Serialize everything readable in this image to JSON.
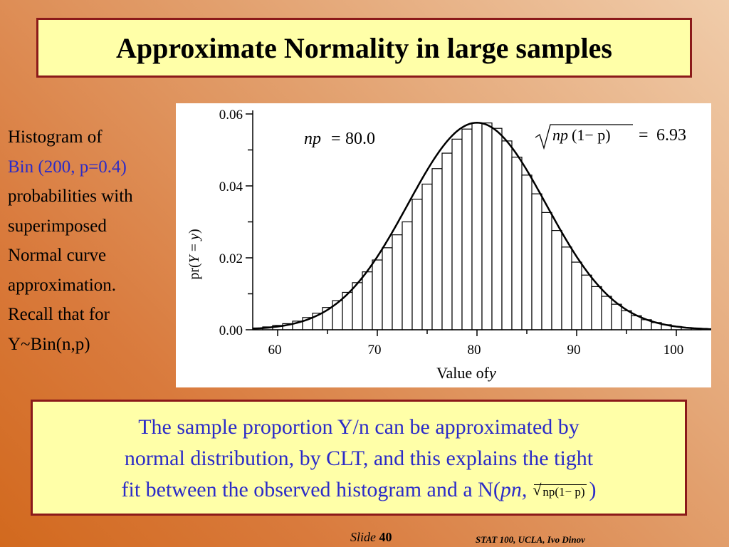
{
  "title": "Approximate Normality in large samples",
  "side_text": {
    "line1": "Histogram of",
    "line2": "Bin (200, p=0.4)",
    "line3": "probabilities with",
    "line4": "superimposed",
    "line5": "Normal curve",
    "line6": "approximation.",
    "line7": "Recall that for",
    "line8": "Y~Bin(n,p)"
  },
  "annotations": {
    "np_label": "np",
    "np_value": "80.0",
    "sd_radicand_np": "np",
    "sd_radicand_rest": "(1− p)",
    "sd_value": "6.93"
  },
  "bottom_text": {
    "line1": "The sample proportion Y/n can be approximated by",
    "line2": "normal distribution, by CLT, and this explains the tight",
    "line3_pre": "fit between the observed histogram and a N(",
    "line3_pn": "pn,",
    "line3_sqrt": "np(1− p)",
    "line3_post": ")"
  },
  "footer": {
    "slide_label": "Slide",
    "slide_number": "40",
    "course": "STAT 100, UCLA, Ivo Dinov"
  },
  "chart_data": {
    "type": "bar",
    "distribution": "Binomial(n=200, p=0.4) with superimposed Normal curve",
    "x": [
      58,
      59,
      60,
      61,
      62,
      63,
      64,
      65,
      66,
      67,
      68,
      69,
      70,
      71,
      72,
      73,
      74,
      75,
      76,
      77,
      78,
      79,
      80,
      81,
      82,
      83,
      84,
      85,
      86,
      87,
      88,
      89,
      90,
      91,
      92,
      93,
      94,
      95,
      96,
      97,
      98,
      99,
      100,
      101,
      102
    ],
    "values": [
      0.0005,
      0.0008,
      0.0012,
      0.0017,
      0.0024,
      0.0034,
      0.0046,
      0.0062,
      0.0081,
      0.0104,
      0.0131,
      0.0161,
      0.0194,
      0.0228,
      0.0264,
      0.03,
      0.0363,
      0.0405,
      0.0448,
      0.0491,
      0.053,
      0.0558,
      0.0575,
      0.0575,
      0.056,
      0.0525,
      0.048,
      0.043,
      0.0378,
      0.0326,
      0.0276,
      0.023,
      0.0188,
      0.0152,
      0.012,
      0.0093,
      0.0071,
      0.0053,
      0.0039,
      0.0028,
      0.002,
      0.0014,
      0.0009,
      0.0006,
      0.0004
    ],
    "curve": {
      "mean": 80.0,
      "sd": 6.93
    },
    "xlabel_text": "Value of ",
    "xlabel_var": "y",
    "ylabel": "pr(Y = y)",
    "x_ticks": [
      "60",
      "70",
      "80",
      "90",
      "100"
    ],
    "x_tick_values": [
      60,
      70,
      80,
      90,
      100
    ],
    "y_ticks": [
      "0.00",
      "0.02",
      "0.04",
      "0.06"
    ],
    "y_tick_values": [
      0,
      0.02,
      0.04,
      0.06
    ],
    "xlim": [
      57.5,
      103.5
    ],
    "ylim": [
      0,
      0.06
    ],
    "grid": false
  }
}
